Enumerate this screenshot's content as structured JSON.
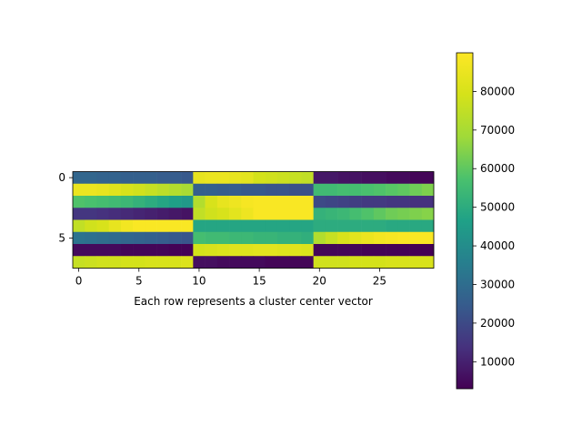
{
  "chart_data": {
    "type": "heatmap",
    "xlabel": "Each row represents a cluster center vector",
    "ylabel": "",
    "title": "",
    "n_rows": 8,
    "n_cols": 30,
    "x_ticks": [
      0,
      5,
      10,
      15,
      20,
      25
    ],
    "y_ticks": [
      0,
      5
    ],
    "colormap": "viridis",
    "colorbar": {
      "min": 3000,
      "max": 90000,
      "ticks": [
        10000,
        20000,
        30000,
        40000,
        50000,
        60000,
        70000,
        80000
      ]
    },
    "values": [
      [
        28000,
        28000,
        27000,
        27000,
        26000,
        26000,
        26000,
        25000,
        25000,
        24000,
        84000,
        85000,
        85000,
        84000,
        83000,
        79000,
        78000,
        77000,
        76000,
        75000,
        8000,
        8000,
        7000,
        7000,
        6000,
        6000,
        5000,
        5000,
        4000,
        4000
      ],
      [
        85000,
        85000,
        84000,
        82000,
        80000,
        78000,
        76000,
        74000,
        72000,
        70000,
        26000,
        26000,
        25000,
        25000,
        24000,
        24000,
        23000,
        23000,
        22000,
        22000,
        55000,
        55000,
        56000,
        56000,
        57000,
        58000,
        59000,
        60000,
        62000,
        64000
      ],
      [
        58000,
        57000,
        56000,
        55000,
        54000,
        52000,
        50000,
        48000,
        46000,
        44000,
        72000,
        80000,
        84000,
        86000,
        88000,
        89000,
        89000,
        89000,
        89000,
        89000,
        20000,
        19000,
        18000,
        17000,
        16000,
        16000,
        15000,
        15000,
        14000,
        14000
      ],
      [
        15000,
        15000,
        14000,
        13000,
        12000,
        11000,
        10000,
        9000,
        8000,
        7000,
        75000,
        78000,
        80000,
        83000,
        86000,
        89000,
        89000,
        89000,
        89000,
        89000,
        52000,
        53000,
        54000,
        56000,
        58000,
        60000,
        62000,
        63000,
        64000,
        65000
      ],
      [
        75000,
        78000,
        80000,
        84000,
        87000,
        89000,
        89000,
        89000,
        89000,
        89000,
        48000,
        48000,
        48000,
        48000,
        48000,
        48000,
        48000,
        48000,
        48000,
        48000,
        50000,
        50000,
        50000,
        50000,
        50000,
        50000,
        49000,
        49000,
        49000,
        49000
      ],
      [
        32000,
        31000,
        30000,
        29000,
        28000,
        27000,
        26000,
        25000,
        24000,
        23000,
        56000,
        55000,
        55000,
        54000,
        54000,
        53000,
        53000,
        52000,
        52000,
        51000,
        72000,
        76000,
        80000,
        83000,
        85000,
        87000,
        88000,
        89000,
        89000,
        89000
      ],
      [
        5000,
        5000,
        5000,
        5000,
        4000,
        4000,
        4000,
        4000,
        3500,
        3500,
        79000,
        80000,
        81000,
        82000,
        82000,
        83000,
        83000,
        82000,
        82000,
        81000,
        4000,
        4000,
        4000,
        4000,
        3500,
        3500,
        3500,
        3500,
        3000,
        3000
      ],
      [
        76000,
        77000,
        78000,
        78000,
        79000,
        79000,
        80000,
        80000,
        80000,
        81000,
        6000,
        6000,
        5000,
        5000,
        5000,
        5000,
        4000,
        4000,
        4000,
        4000,
        78000,
        78000,
        78000,
        79000,
        79000,
        79000,
        80000,
        80000,
        80000,
        80000
      ]
    ]
  }
}
